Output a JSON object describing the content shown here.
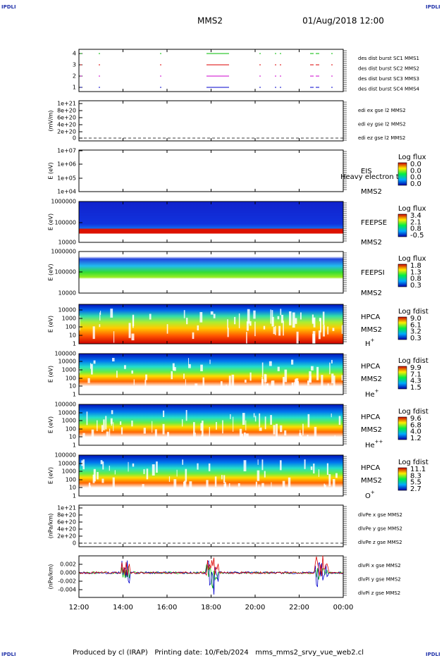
{
  "header": {
    "logo": "IPDLI",
    "spacecraft": "MMS2",
    "datetime": "01/Aug/2018 12:00"
  },
  "panels": [
    {
      "ylabel": "",
      "yticks": [
        "4",
        "3",
        "2",
        "1"
      ],
      "legend": [
        {
          "text": "des dist burst SC1 MMS1",
          "color": "#0000cc"
        },
        {
          "text": "des dist burst SC2 MMS2",
          "color": "#cc00cc"
        },
        {
          "text": "des dist burst SC3 MMS3",
          "color": "#dd0000"
        },
        {
          "text": "des dist burst SC4 MMS4",
          "color": "#00bb00"
        }
      ]
    },
    {
      "ylabel": "(mV/m)",
      "yticks": [
        "1e+21",
        "8e+20",
        "6e+20",
        "4e+20",
        "2e+20",
        "0"
      ],
      "legend": [
        {
          "text": "edi ex gse l2 MMS2",
          "color": "#dd0000"
        },
        {
          "text": "edi ey gse l2 MMS2",
          "color": "#00bb00"
        },
        {
          "text": "edi ez gse l2 MMS2",
          "color": "#0000cc"
        }
      ]
    },
    {
      "ylabel": "E (eV)",
      "yticks": [
        "1e+07",
        "1e+06",
        "1e+05",
        "1e+04"
      ],
      "instrument": [
        "EIS",
        "MMS2"
      ],
      "overlay": "Heavy electron to",
      "cbar_title": "Log flux",
      "cbar_labels": [
        "0.0",
        "0.0",
        "0.0",
        "0.0"
      ]
    },
    {
      "ylabel": "E (eV)",
      "yticks": [
        "1000000",
        "100000",
        "10000"
      ],
      "instrument": [
        "FEEPSE",
        "MMS2"
      ],
      "cbar_title": "Log flux",
      "cbar_labels": [
        "3.4",
        "2.1",
        "0.8",
        "-0.5"
      ]
    },
    {
      "ylabel": "E (eV)",
      "yticks": [
        "1000000",
        "100000",
        "10000"
      ],
      "instrument": [
        "FEEPSI",
        "MMS2"
      ],
      "cbar_title": "Log flux",
      "cbar_labels": [
        "1.8",
        "1.3",
        "0.8",
        "0.3"
      ]
    },
    {
      "ylabel": "E (eV)",
      "yticks": [
        "10000",
        "1000",
        "100",
        "10",
        "1"
      ],
      "instrument": [
        "HPCA",
        "MMS2"
      ],
      "species": {
        "base": "H",
        "charge": "+"
      },
      "cbar_title": "Log fdist",
      "cbar_labels": [
        "9.0",
        "6.1",
        "3.2",
        "0.3"
      ]
    },
    {
      "ylabel": "E (eV)",
      "yticks": [
        "100000",
        "10000",
        "1000",
        "100",
        "10",
        "1"
      ],
      "instrument": [
        "HPCA",
        "MMS2"
      ],
      "species": {
        "base": "He",
        "charge": "+"
      },
      "cbar_title": "Log fdist",
      "cbar_labels": [
        "9.9",
        "7.1",
        "4.3",
        "1.5"
      ]
    },
    {
      "ylabel": "E (eV)",
      "yticks": [
        "100000",
        "10000",
        "1000",
        "100",
        "10",
        "1"
      ],
      "instrument": [
        "HPCA",
        "MMS2"
      ],
      "species": {
        "base": "He",
        "charge": "++"
      },
      "cbar_title": "Log fdist",
      "cbar_labels": [
        "9.6",
        "6.8",
        "4.0",
        "1.2"
      ]
    },
    {
      "ylabel": "E (eV)",
      "yticks": [
        "100000",
        "10000",
        "1000",
        "100",
        "10",
        "1"
      ],
      "instrument": [
        "HPCA",
        "MMS2"
      ],
      "species": {
        "base": "O",
        "charge": "+"
      },
      "cbar_title": "Log fdist",
      "cbar_labels": [
        "11.1",
        "8.3",
        "5.5",
        "2.7"
      ]
    },
    {
      "ylabel": "(nPa/km)",
      "yticks": [
        "1e+21",
        "8e+20",
        "6e+20",
        "4e+20",
        "2e+20",
        "0"
      ],
      "legend": [
        {
          "text": "dlvPe x gse MMS2",
          "color": "#dd0000"
        },
        {
          "text": "dlvPe y gse MMS2",
          "color": "#00bb00"
        },
        {
          "text": "dlvPe z gse MMS2",
          "color": "#0000cc"
        }
      ]
    },
    {
      "ylabel": "(nPa/km)",
      "yticks": [
        "0.002",
        "0.000",
        "-0.002",
        "-0.004"
      ],
      "legend": [
        {
          "text": "dlvPi x gse MMS2",
          "color": "#dd0000"
        },
        {
          "text": "dlvPi y gse MMS2",
          "color": "#00bb00"
        },
        {
          "text": "dlvPi z gse MMS2",
          "color": "#0000cc"
        }
      ]
    }
  ],
  "xticks": [
    "12:00",
    "14:00",
    "16:00",
    "18:00",
    "20:00",
    "22:00",
    "00:00"
  ],
  "footer": "Produced by cl (IRAP)   Printing date: 10/Feb/2024   mms_mms2_srvy_vue_web2.cl"
}
